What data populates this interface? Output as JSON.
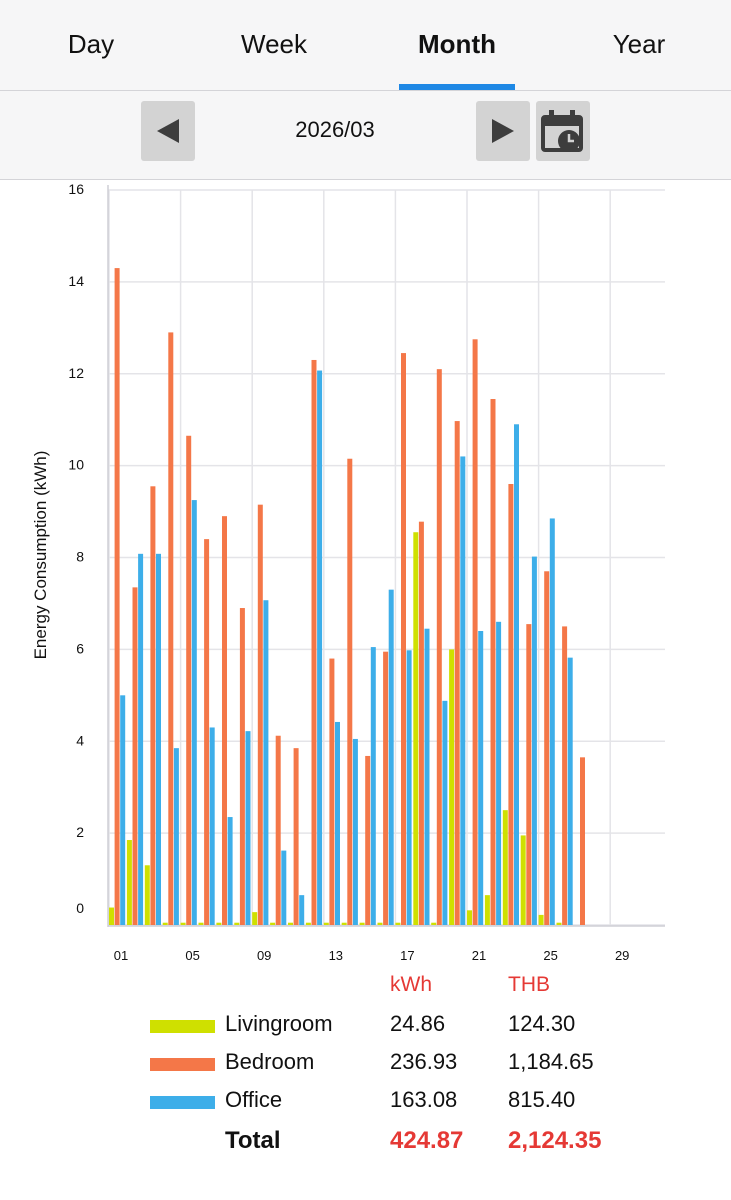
{
  "tabs": {
    "day": "Day",
    "week": "Week",
    "month": "Month",
    "year": "Year",
    "active": "month"
  },
  "nav": {
    "date": "2026/03"
  },
  "legend": {
    "kwh_header": "kWh",
    "thb_header": "THB",
    "rows": [
      {
        "name": "Livingroom",
        "kwh": "24.86",
        "thb": "124.30",
        "color": "#cfe000"
      },
      {
        "name": "Bedroom",
        "kwh": "236.93",
        "thb": "1,184.65",
        "color": "#f47748"
      },
      {
        "name": "Office",
        "kwh": "163.08",
        "thb": "815.40",
        "color": "#3daee9"
      }
    ],
    "total": {
      "name": "Total",
      "kwh": "424.87",
      "thb": "2,124.35"
    }
  },
  "chart_data": {
    "type": "bar",
    "ylabel": "Energy Consumption (kWh)",
    "xlabel": "",
    "ylim": [
      0,
      16
    ],
    "yticks": [
      "0",
      "2",
      "4",
      "6",
      "8",
      "10",
      "12",
      "14",
      "16"
    ],
    "xticks": [
      "01",
      "05",
      "09",
      "13",
      "17",
      "21",
      "25",
      "29"
    ],
    "grid": true,
    "categories": [
      "01",
      "02",
      "03",
      "04",
      "05",
      "06",
      "07",
      "08",
      "09",
      "10",
      "11",
      "12",
      "13",
      "14",
      "15",
      "16",
      "17",
      "18",
      "19",
      "20",
      "21",
      "22",
      "23",
      "24",
      "25",
      "26",
      "27",
      "28",
      "29",
      "30",
      "31"
    ],
    "series": [
      {
        "name": "Livingroom",
        "color": "#cfe000",
        "values": [
          0.38,
          1.85,
          1.3,
          0.05,
          0.05,
          0.05,
          0.05,
          0.05,
          0.28,
          0.05,
          0.05,
          0.05,
          0.05,
          0.05,
          0.05,
          0.05,
          0.05,
          8.55,
          0.05,
          6.0,
          0.32,
          0.65,
          2.5,
          1.95,
          0.22,
          0.05,
          0,
          0,
          0,
          0,
          0
        ]
      },
      {
        "name": "Bedroom",
        "color": "#f47748",
        "values": [
          14.3,
          7.35,
          9.55,
          12.9,
          10.65,
          8.4,
          8.9,
          6.9,
          9.15,
          4.12,
          3.85,
          12.3,
          5.8,
          10.15,
          3.68,
          5.95,
          12.45,
          8.78,
          12.1,
          10.97,
          12.75,
          11.45,
          9.6,
          6.55,
          7.7,
          6.5,
          3.65,
          0,
          0,
          0,
          0
        ]
      },
      {
        "name": "Office",
        "color": "#3daee9",
        "values": [
          5.0,
          8.08,
          8.08,
          3.85,
          9.25,
          4.3,
          2.35,
          4.22,
          7.07,
          1.62,
          0.65,
          12.07,
          4.42,
          4.05,
          6.05,
          7.3,
          5.98,
          6.45,
          4.88,
          10.2,
          6.4,
          6.6,
          10.9,
          8.02,
          8.85,
          5.82,
          0,
          0,
          0,
          0,
          0
        ]
      }
    ]
  }
}
